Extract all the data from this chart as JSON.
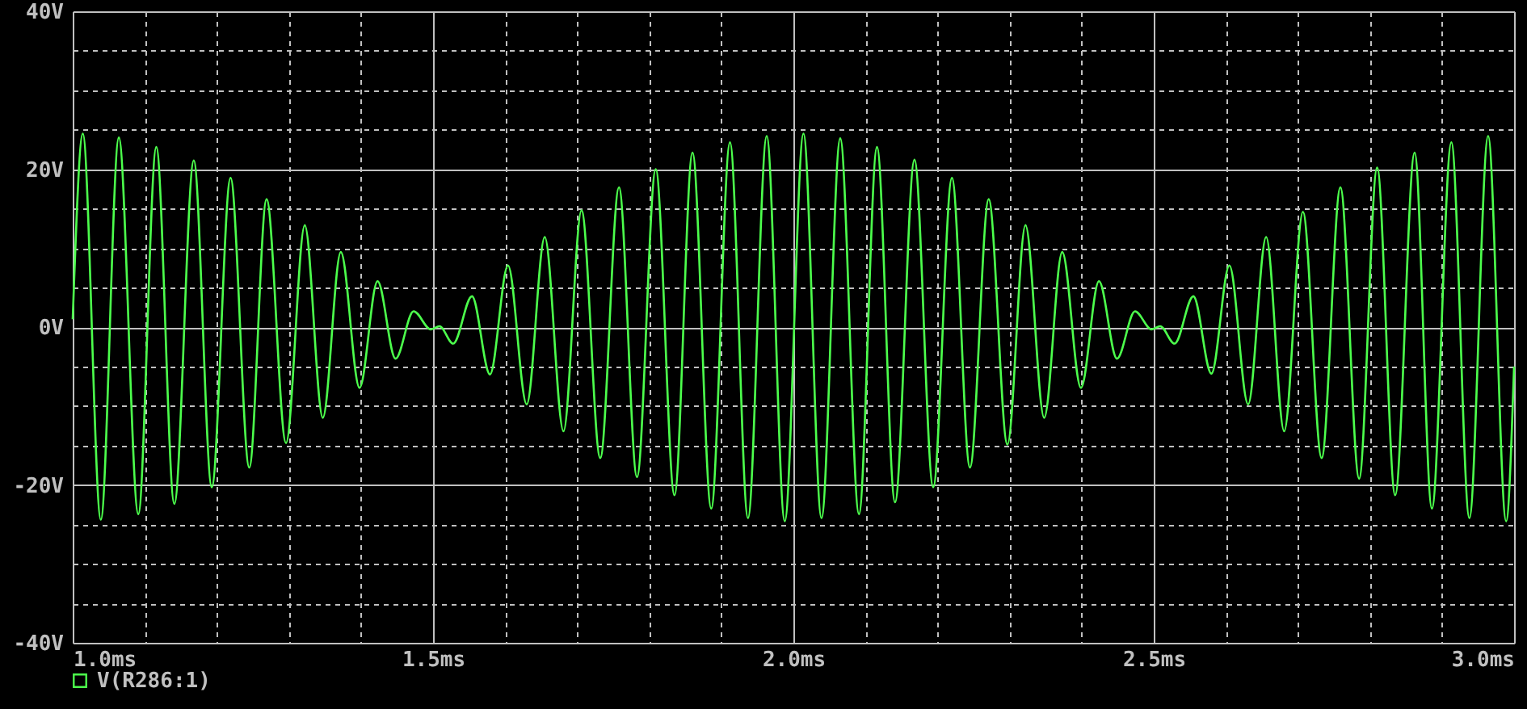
{
  "chart_data": {
    "type": "line",
    "x": [
      1.0,
      1.014,
      1.039,
      1.064,
      1.091,
      1.116,
      1.141,
      1.168,
      1.193,
      1.219,
      1.245,
      1.269,
      1.296,
      1.322,
      1.347,
      1.372,
      1.398,
      1.423,
      1.448,
      1.473,
      1.497,
      1.509,
      1.528,
      1.554,
      1.579,
      1.604,
      1.63,
      1.655,
      1.681,
      1.706,
      1.732,
      1.758,
      1.783,
      1.809,
      1.835,
      1.86,
      1.886,
      1.912,
      1.937,
      1.963,
      1.988,
      2.014,
      2.039,
      2.065,
      2.091,
      2.116,
      2.141,
      2.168,
      2.194,
      2.22,
      2.245,
      2.271,
      2.297,
      2.322,
      2.348,
      2.373,
      2.399,
      2.424,
      2.449,
      2.474,
      2.497,
      2.509,
      2.529,
      2.555,
      2.58,
      2.605,
      2.631,
      2.656,
      2.681,
      2.707,
      2.733,
      2.759,
      2.785,
      2.81,
      2.835,
      2.862,
      2.886,
      2.913,
      2.938,
      2.964,
      2.989,
      3.0
    ],
    "series": [
      {
        "name": "V(R286:1)",
        "color": "#4cff4c",
        "values": [
          1,
          24.5,
          -24.4,
          24.0,
          -23.7,
          22.8,
          -22.4,
          21.1,
          -20.3,
          18.9,
          -17.8,
          16.2,
          -14.7,
          12.9,
          -11.5,
          9.5,
          -7.7,
          5.8,
          -4.0,
          2.0,
          -0.3,
          0.1,
          -2.1,
          3.9,
          -6.0,
          7.8,
          -9.8,
          11.4,
          -13.2,
          14.8,
          -16.6,
          17.7,
          -19.0,
          20.0,
          -21.3,
          22.1,
          -23.0,
          23.4,
          -24.2,
          24.2,
          -24.6,
          24.5,
          -24.2,
          23.9,
          -23.7,
          22.8,
          -22.2,
          21.2,
          -20.3,
          18.9,
          -17.8,
          16.2,
          -14.9,
          12.9,
          -11.5,
          9.5,
          -7.7,
          5.8,
          -4.0,
          2.0,
          -0.3,
          0.1,
          -2.1,
          3.9,
          -5.9,
          7.8,
          -9.8,
          11.4,
          -13.2,
          14.6,
          -16.6,
          17.7,
          -19.2,
          20.2,
          -21.3,
          22.1,
          -23.0,
          23.4,
          -24.2,
          24.2,
          -24.6,
          -5.0
        ]
      }
    ],
    "xlim": [
      1.0,
      3.0
    ],
    "xticks": [
      {
        "value": 1.0,
        "label": "1.0ms"
      },
      {
        "value": 1.1,
        "label": null
      },
      {
        "value": 1.2,
        "label": null
      },
      {
        "value": 1.3,
        "label": null
      },
      {
        "value": 1.4,
        "label": null
      },
      {
        "value": 1.5,
        "label": "1.5ms"
      },
      {
        "value": 1.6,
        "label": null
      },
      {
        "value": 1.7,
        "label": null
      },
      {
        "value": 1.8,
        "label": null
      },
      {
        "value": 1.9,
        "label": null
      },
      {
        "value": 2.0,
        "label": "2.0ms"
      },
      {
        "value": 2.1,
        "label": null
      },
      {
        "value": 2.2,
        "label": null
      },
      {
        "value": 2.3,
        "label": null
      },
      {
        "value": 2.4,
        "label": null
      },
      {
        "value": 2.5,
        "label": "2.5ms"
      },
      {
        "value": 2.6,
        "label": null
      },
      {
        "value": 2.7,
        "label": null
      },
      {
        "value": 2.8,
        "label": null
      },
      {
        "value": 2.9,
        "label": null
      },
      {
        "value": 3.0,
        "label": "3.0ms"
      }
    ],
    "ylim": [
      -40,
      40
    ],
    "yticks": [
      {
        "value": -40,
        "label": "-40V"
      },
      {
        "value": -35,
        "label": null
      },
      {
        "value": -30,
        "label": null
      },
      {
        "value": -25,
        "label": null
      },
      {
        "value": -20,
        "label": "-20V"
      },
      {
        "value": -15,
        "label": null
      },
      {
        "value": -10,
        "label": null
      },
      {
        "value": -5,
        "label": null
      },
      {
        "value": 0,
        "label": "0V"
      },
      {
        "value": 5,
        "label": null
      },
      {
        "value": 10,
        "label": null
      },
      {
        "value": 15,
        "label": null
      },
      {
        "value": 20,
        "label": "20V"
      },
      {
        "value": 25,
        "label": null
      },
      {
        "value": 30,
        "label": null
      },
      {
        "value": 35,
        "label": null
      },
      {
        "value": 40,
        "label": "40V"
      }
    ],
    "grid": true,
    "legend": "bottom left"
  }
}
